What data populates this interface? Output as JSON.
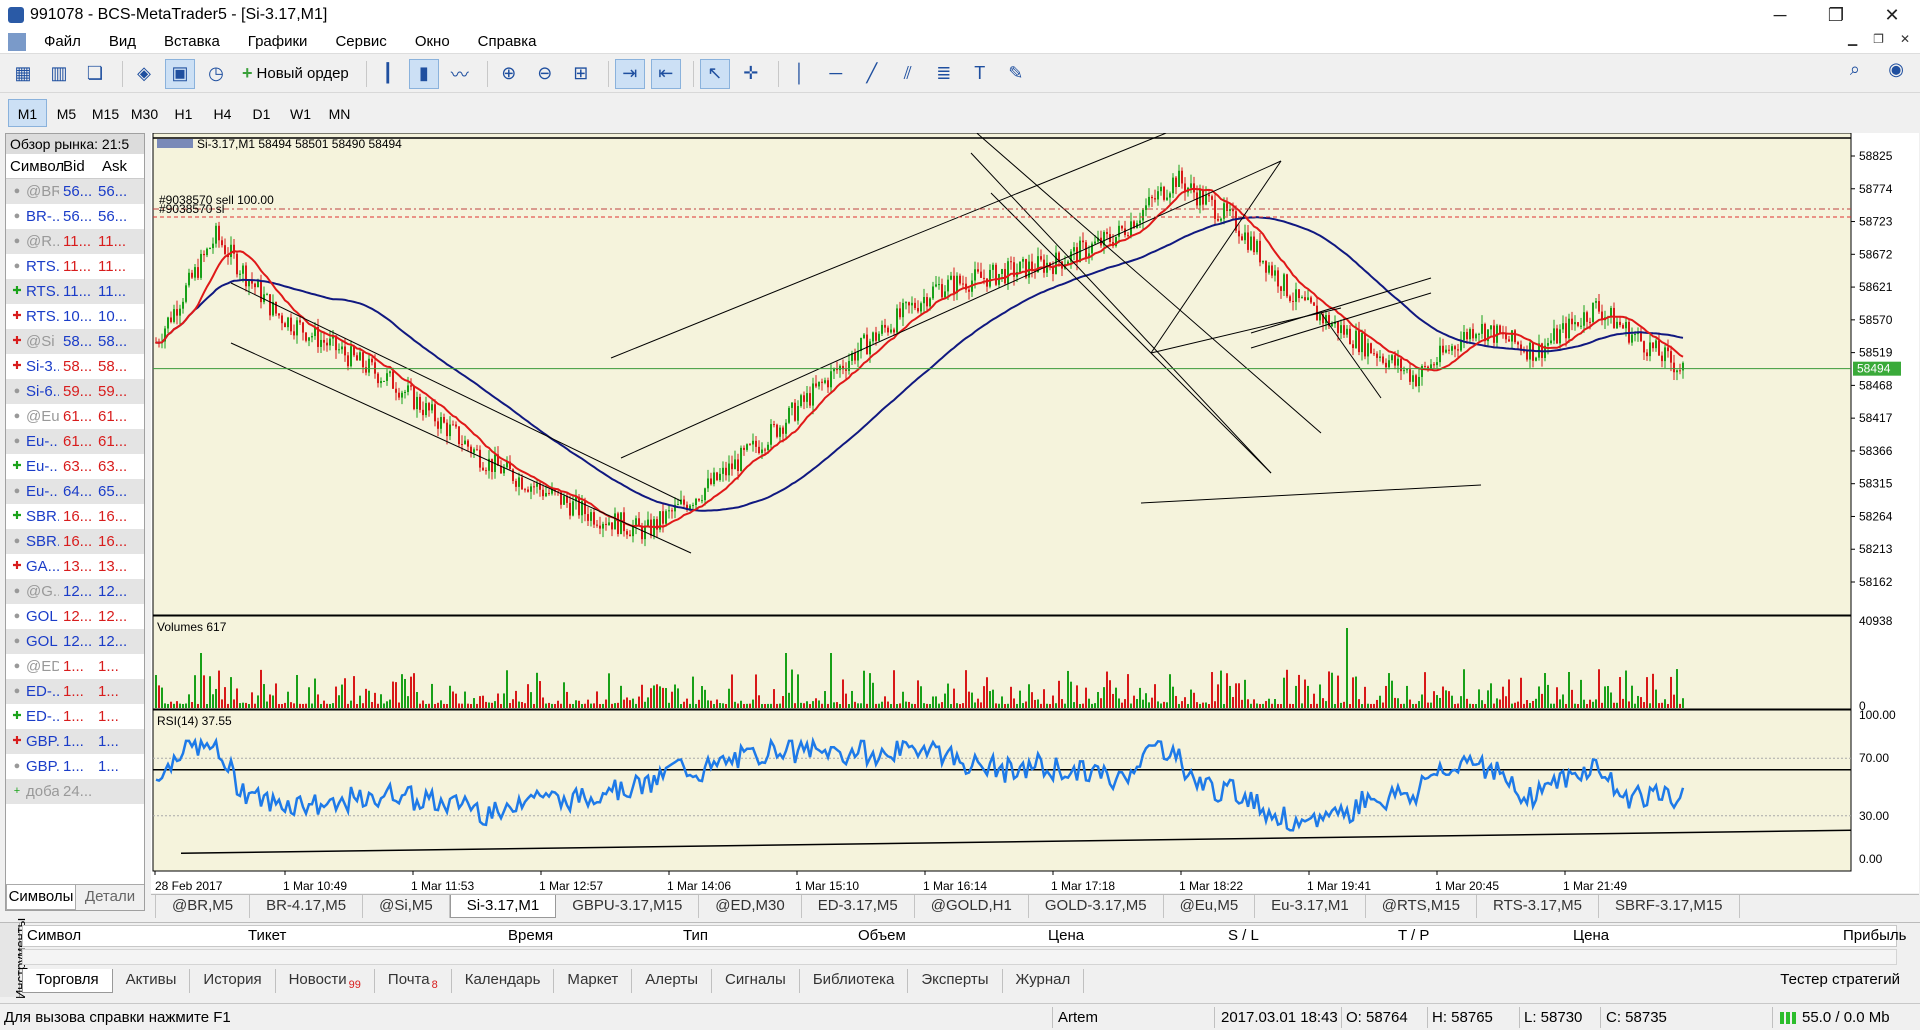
{
  "window": {
    "title": "991078 - BCS-MetaTrader5 - [Si-3.17,M1]",
    "min": "─",
    "max": "❐",
    "close": "✕"
  },
  "menu": [
    "Файл",
    "Вид",
    "Вставка",
    "Графики",
    "Сервис",
    "Окно",
    "Справка"
  ],
  "toolbar": {
    "new_order": "Новый ордер"
  },
  "timeframes": [
    {
      "label": "M1",
      "active": true
    },
    {
      "label": "M5"
    },
    {
      "label": "M15"
    },
    {
      "label": "M30"
    },
    {
      "label": "H1"
    },
    {
      "label": "H4"
    },
    {
      "label": "D1"
    },
    {
      "label": "W1"
    },
    {
      "label": "MN"
    }
  ],
  "market_watch": {
    "title": "Обзор рынка: 21:5",
    "cols": [
      "Символ",
      "Bid",
      "Ask"
    ],
    "rows": [
      {
        "ic": "dot",
        "sym": "@BR",
        "bid": "56...",
        "ask": "56...",
        "c": "gray",
        "bc": "blue"
      },
      {
        "ic": "dot",
        "sym": "BR-...",
        "bid": "56...",
        "ask": "56...",
        "c": "blue",
        "bc": "blue"
      },
      {
        "ic": "dot",
        "sym": "@R...",
        "bid": "11...",
        "ask": "11...",
        "c": "gray",
        "bc": "red"
      },
      {
        "ic": "dot",
        "sym": "RTS...",
        "bid": "11...",
        "ask": "11...",
        "c": "blue",
        "bc": "red"
      },
      {
        "ic": "up",
        "sym": "RTS...",
        "bid": "11...",
        "ask": "11...",
        "c": "blue",
        "bc": "blue"
      },
      {
        "ic": "dn",
        "sym": "RTS...",
        "bid": "10...",
        "ask": "10...",
        "c": "blue",
        "bc": "blue"
      },
      {
        "ic": "dn",
        "sym": "@Si",
        "bid": "58...",
        "ask": "58...",
        "c": "gray",
        "bc": "blue"
      },
      {
        "ic": "dn",
        "sym": "Si-3...",
        "bid": "58...",
        "ask": "58...",
        "c": "blue",
        "bc": "red"
      },
      {
        "ic": "dot",
        "sym": "Si-6...",
        "bid": "59...",
        "ask": "59...",
        "c": "blue",
        "bc": "red"
      },
      {
        "ic": "dot",
        "sym": "@Eu",
        "bid": "61...",
        "ask": "61...",
        "c": "gray",
        "bc": "red"
      },
      {
        "ic": "dot",
        "sym": "Eu-...",
        "bid": "61...",
        "ask": "61...",
        "c": "blue",
        "bc": "red"
      },
      {
        "ic": "up",
        "sym": "Eu-...",
        "bid": "63...",
        "ask": "63...",
        "c": "blue",
        "bc": "red"
      },
      {
        "ic": "dot",
        "sym": "Eu-...",
        "bid": "64...",
        "ask": "65...",
        "c": "blue",
        "bc": "blue"
      },
      {
        "ic": "up",
        "sym": "SBR...",
        "bid": "16...",
        "ask": "16...",
        "c": "blue",
        "bc": "red"
      },
      {
        "ic": "dot",
        "sym": "SBR...",
        "bid": "16...",
        "ask": "16...",
        "c": "blue",
        "bc": "red"
      },
      {
        "ic": "dn",
        "sym": "GA...",
        "bid": "13...",
        "ask": "13...",
        "c": "blue",
        "bc": "red"
      },
      {
        "ic": "dot",
        "sym": "@G...",
        "bid": "12...",
        "ask": "12...",
        "c": "gray",
        "bc": "blue"
      },
      {
        "ic": "dot",
        "sym": "GOL...",
        "bid": "12...",
        "ask": "12...",
        "c": "blue",
        "bc": "red"
      },
      {
        "ic": "dot",
        "sym": "GOL...",
        "bid": "12...",
        "ask": "12...",
        "c": "blue",
        "bc": "blue"
      },
      {
        "ic": "dot",
        "sym": "@ED",
        "bid": "1...",
        "ask": "1...",
        "c": "gray",
        "bc": "red"
      },
      {
        "ic": "dot",
        "sym": "ED-...",
        "bid": "1...",
        "ask": "1...",
        "c": "blue",
        "bc": "red"
      },
      {
        "ic": "up",
        "sym": "ED-...",
        "bid": "1...",
        "ask": "1...",
        "c": "blue",
        "bc": "red"
      },
      {
        "ic": "dn",
        "sym": "GBP...",
        "bid": "1...",
        "ask": "1...",
        "c": "blue",
        "bc": "blue"
      },
      {
        "ic": "dot",
        "sym": "GBP...",
        "bid": "1...",
        "ask": "1...",
        "c": "blue",
        "bc": "blue"
      },
      {
        "ic": "add",
        "sym": "добавит...",
        "bid": "24...",
        "ask": "",
        "c": "gray",
        "bc": "gray"
      }
    ],
    "tabs": [
      "Символы",
      "Детали"
    ]
  },
  "chart": {
    "header": "Si-3.17,M1  58494 58501 58490 58494",
    "order_label_1": "#9038570 sell 100.00",
    "order_label_2": "#9038570 sl",
    "volumes_label": "Volumes 617",
    "rsi_label": "RSI(14) 37.55",
    "price_ticks": [
      "58825",
      "58774",
      "58723",
      "58672",
      "58621",
      "58570",
      "58519",
      "58468",
      "58417",
      "58366",
      "58315",
      "58264",
      "58213",
      "58162"
    ],
    "current_price": "58494",
    "volume_ticks": [
      "40938",
      "0"
    ],
    "rsi_ticks": [
      "100.00",
      "70.00",
      "30.00",
      "0.00"
    ],
    "time_labels": [
      "28 Feb 2017",
      "1 Mar 10:49",
      "1 Mar 11:53",
      "1 Mar 12:57",
      "1 Mar 14:06",
      "1 Mar 15:10",
      "1 Mar 16:14",
      "1 Mar 17:18",
      "1 Mar 18:22",
      "1 Mar 19:41",
      "1 Mar 20:45",
      "1 Mar 21:49"
    ],
    "colors": {
      "bg": "#f5f3dc",
      "ma_fast": "#e01818",
      "ma_slow": "#101880",
      "rsi": "#1e7ae8",
      "bull": "#18a018",
      "bear": "#d81818"
    }
  },
  "chart_tabs": [
    {
      "label": "@BR,M5"
    },
    {
      "label": "BR-4.17,M5"
    },
    {
      "label": "@Si,M5"
    },
    {
      "label": "Si-3.17,M1",
      "active": true
    },
    {
      "label": "GBPU-3.17,M15"
    },
    {
      "label": "@ED,M30"
    },
    {
      "label": "ED-3.17,M5"
    },
    {
      "label": "@GOLD,H1"
    },
    {
      "label": "GOLD-3.17,M5"
    },
    {
      "label": "@Eu,M5"
    },
    {
      "label": "Eu-3.17,M1"
    },
    {
      "label": "@RTS,M15"
    },
    {
      "label": "RTS-3.17,M5"
    },
    {
      "label": "SBRF-3.17,M15"
    }
  ],
  "toolbox": {
    "side_label": "Инструменты",
    "cols": [
      "Символ",
      "Тикет",
      "Время",
      "Тип",
      "Объем",
      "Цена",
      "S / L",
      "T / P",
      "Цена",
      "Прибыль"
    ],
    "tabs": [
      {
        "label": "Торговля",
        "active": true
      },
      {
        "label": "Активы"
      },
      {
        "label": "История"
      },
      {
        "label": "Новости",
        "badge": "99"
      },
      {
        "label": "Почта",
        "badge": "8"
      },
      {
        "label": "Календарь"
      },
      {
        "label": "Маркет"
      },
      {
        "label": "Алерты"
      },
      {
        "label": "Сигналы"
      },
      {
        "label": "Библиотека"
      },
      {
        "label": "Эксперты"
      },
      {
        "label": "Журнал"
      }
    ],
    "strategy_tester": "Тестер стратегий"
  },
  "status": {
    "help": "Для вызова справки нажмите F1",
    "profile": "Artem",
    "datetime": "2017.03.01 18:43",
    "open": "O: 58764",
    "high": "H: 58765",
    "low": "L: 58730",
    "close": "C: 58735",
    "traffic": "55.0 / 0.0 Mb"
  }
}
